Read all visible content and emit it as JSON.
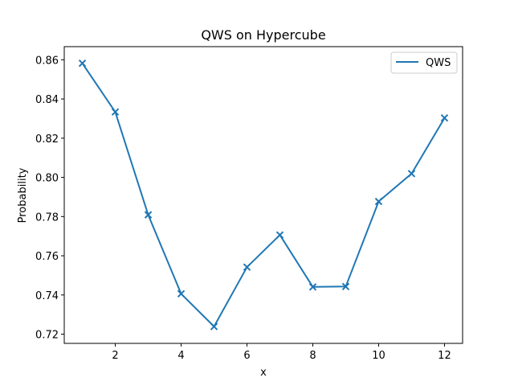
{
  "chart_data": {
    "type": "line",
    "title": "QWS on Hypercube",
    "xlabel": "x",
    "ylabel": "Probability",
    "xlim": [
      0.45,
      12.55
    ],
    "ylim": [
      0.7153,
      0.8667
    ],
    "xticks": [
      2,
      4,
      6,
      8,
      10,
      12
    ],
    "xtick_labels": [
      "2",
      "4",
      "6",
      "8",
      "10",
      "12"
    ],
    "yticks": [
      0.72,
      0.74,
      0.76,
      0.78,
      0.8,
      0.82,
      0.84,
      0.86
    ],
    "ytick_labels": [
      "0.72",
      "0.74",
      "0.76",
      "0.78",
      "0.80",
      "0.82",
      "0.84",
      "0.86"
    ],
    "grid": false,
    "legend_position": "upper right",
    "series": [
      {
        "name": "QWS",
        "color": "#1f77b4",
        "marker": "x",
        "x": [
          1,
          2,
          3,
          4,
          5,
          6,
          7,
          8,
          9,
          10,
          11,
          12
        ],
        "y": [
          0.8582,
          0.8334,
          0.7809,
          0.7406,
          0.7239,
          0.7542,
          0.7706,
          0.7441,
          0.7443,
          0.7877,
          0.8019,
          0.8303
        ]
      }
    ]
  }
}
